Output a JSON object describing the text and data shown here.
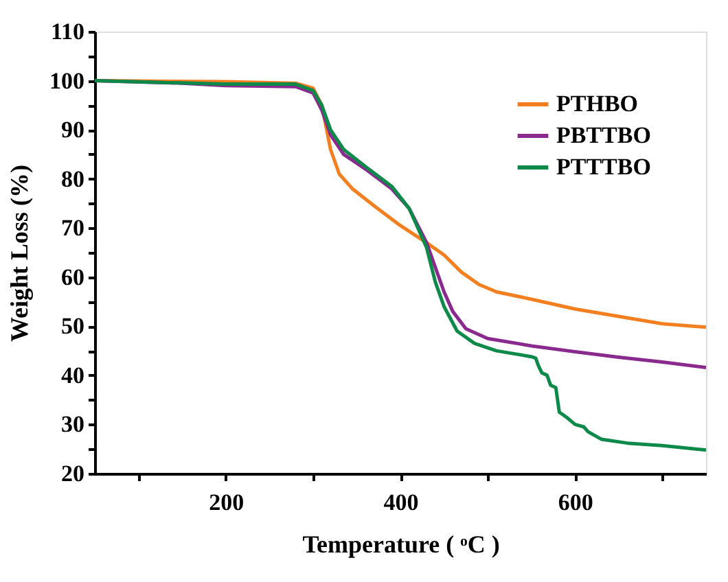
{
  "chart_data": {
    "type": "line",
    "xlabel": "Temperature ( ᵒC )",
    "ylabel": "Weight Loss (%)",
    "xlim": [
      50,
      750
    ],
    "ylim": [
      20,
      110
    ],
    "xticks": [
      {
        "value": 100,
        "label": null
      },
      200,
      {
        "value": 300,
        "label": null
      },
      400,
      {
        "value": 500,
        "label": null
      },
      600,
      {
        "value": 700,
        "label": null
      }
    ],
    "yticks": [
      20,
      {
        "value": 25,
        "label": null
      },
      30,
      {
        "value": 35,
        "label": null
      },
      40,
      {
        "value": 45,
        "label": null
      },
      50,
      {
        "value": 55,
        "label": null
      },
      60,
      {
        "value": 65,
        "label": null
      },
      70,
      {
        "value": 75,
        "label": null
      },
      80,
      {
        "value": 85,
        "label": null
      },
      90,
      {
        "value": 95,
        "label": null
      },
      100,
      {
        "value": 105,
        "label": null
      },
      110
    ],
    "grid": false,
    "legend": "top right",
    "marker": "none",
    "line_style": "solid",
    "series": [
      {
        "name": "PTHBO",
        "color": "#f47f20",
        "x": [
          50,
          200,
          280,
          300,
          310,
          320,
          330,
          345,
          370,
          400,
          430,
          450,
          470,
          490,
          510,
          550,
          600,
          650,
          700,
          750
        ],
        "values": [
          100,
          99.8,
          99.5,
          98.5,
          95,
          86,
          81,
          78,
          74.5,
          70.5,
          67,
          64.5,
          61,
          58.5,
          57,
          55.5,
          53.5,
          52,
          50.5,
          49.8
        ]
      },
      {
        "name": "PBTTBO",
        "color": "#8b2a8e",
        "x": [
          50,
          150,
          200,
          280,
          300,
          310,
          320,
          335,
          360,
          390,
          410,
          430,
          440,
          450,
          460,
          475,
          500,
          550,
          600,
          650,
          700,
          750
        ],
        "values": [
          100,
          99.5,
          99,
          98.8,
          97.5,
          94,
          89,
          85,
          82,
          78,
          74,
          67,
          62,
          57,
          53,
          49.5,
          47.5,
          46,
          44.8,
          43.7,
          42.7,
          41.6
        ]
      },
      {
        "name": "PTTTBO",
        "color": "#0d8a4a",
        "x": [
          50,
          200,
          280,
          300,
          310,
          320,
          335,
          360,
          390,
          410,
          430,
          440,
          450,
          465,
          485,
          510,
          550,
          555,
          558,
          562,
          568,
          572,
          578,
          582,
          590,
          600,
          610,
          615,
          630,
          660,
          700,
          750
        ],
        "values": [
          100,
          99.3,
          99.3,
          98,
          95,
          90,
          86,
          82.5,
          78.5,
          74,
          66,
          59,
          54,
          49,
          46.5,
          45,
          43.8,
          43.5,
          42,
          40.5,
          40,
          38,
          37.5,
          32.5,
          31.5,
          30,
          29.5,
          28.5,
          27,
          26.2,
          25.7,
          24.8
        ]
      }
    ]
  }
}
